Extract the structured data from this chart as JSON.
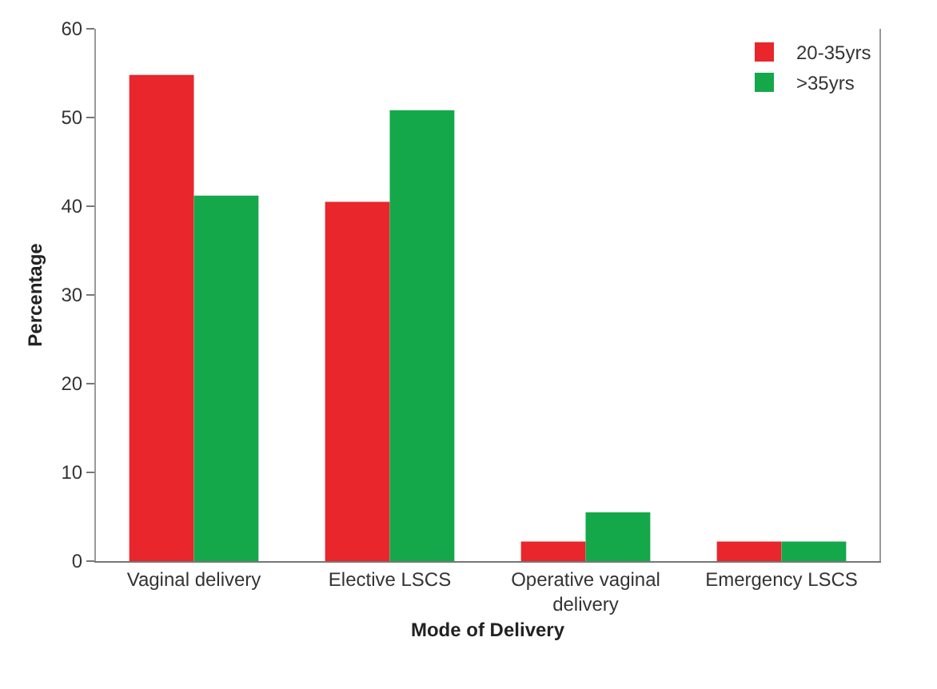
{
  "chart_data": {
    "type": "bar",
    "xlabel": "Mode of Delivery",
    "ylabel": "Percentage",
    "categories": [
      "Vaginal delivery",
      "Elective LSCS",
      "Operative vaginal delivery",
      "Emergency LSCS"
    ],
    "series": [
      {
        "name": "20-35yrs",
        "color": "#e8262b",
        "values": [
          54.8,
          40.5,
          2.2,
          2.2
        ]
      },
      {
        "name": ">35yrs",
        "color": "#14a84a",
        "values": [
          41.2,
          50.8,
          5.5,
          2.2
        ]
      }
    ],
    "ylim": [
      0,
      60
    ],
    "yticks": [
      0,
      10,
      20,
      30,
      40,
      50,
      60
    ],
    "grid": false,
    "legend": "top right"
  }
}
